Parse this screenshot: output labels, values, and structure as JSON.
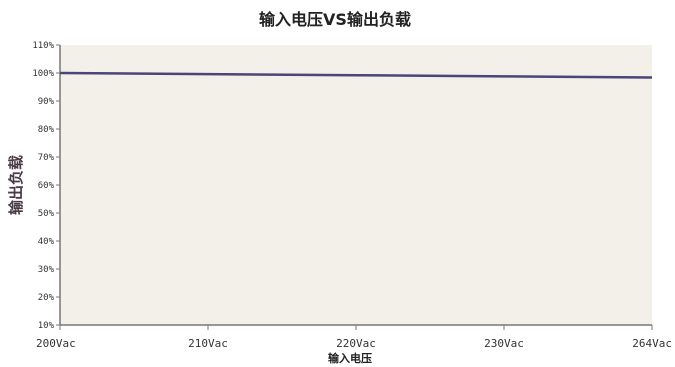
{
  "chart_data": {
    "type": "line",
    "title": "输入电压VS输出负载",
    "xlabel": "输入电压",
    "ylabel": "输出负载",
    "categories": [
      "200Vac",
      "210Vac",
      "220Vac",
      "230Vac",
      "264Vac"
    ],
    "y_ticks": [
      "10%",
      "20%",
      "30%",
      "40%",
      "50%",
      "60%",
      "70%",
      "80%",
      "90%",
      "100%",
      "110%"
    ],
    "ylim": [
      10,
      110
    ],
    "grid": false,
    "series": [
      {
        "values": [
          100,
          99.6,
          99.2,
          98.8,
          98.4
        ]
      }
    ],
    "colors": {
      "line": "#4b4578",
      "plot_bg": "#f3f0ea",
      "axis": "#777777"
    }
  }
}
